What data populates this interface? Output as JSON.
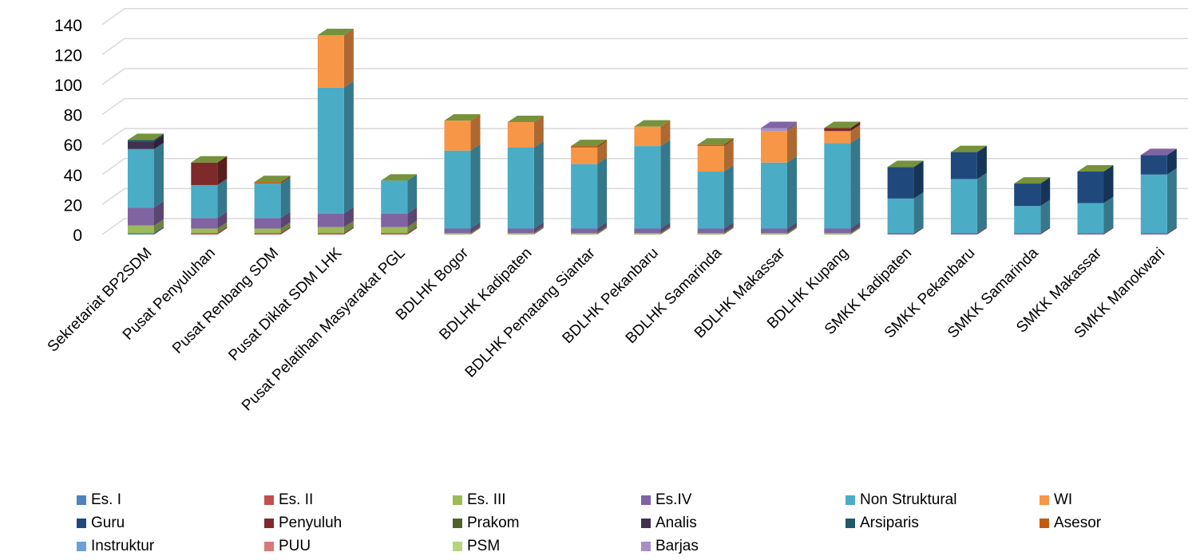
{
  "chart_data": {
    "type": "bar",
    "stacked": true,
    "three_d": true,
    "title": "",
    "xlabel": "",
    "ylabel": "",
    "ylim": [
      0,
      140
    ],
    "yticks": [
      0,
      20,
      40,
      60,
      80,
      100,
      120,
      140
    ],
    "grid": true,
    "legend_position": "bottom",
    "categories": [
      "Sekretariat BP2SDM",
      "Pusat Penyuluhan",
      "Pusat Renbang SDM",
      "Pusat Diklat SDM LHK",
      "Pusat Pelatihan Masyarakat PGL",
      "BDLHK Bogor",
      "BDLHK Kadipaten",
      "BDLHK Pematang Siantar",
      "BDLHK Pekanbaru",
      "BDLHK Samarinda",
      "BDLHK Makassar",
      "BDLHK Kupang",
      "SMKK Kadipaten",
      "SMKK Pekanbaru",
      "SMKK Samarinda",
      "SMKK Makassar",
      "SMKK Manokwari"
    ],
    "series": [
      {
        "name": "Es. I",
        "color": "#4f81bd",
        "values": [
          1,
          0,
          0,
          0,
          0,
          0,
          0,
          0,
          0,
          0,
          0,
          0,
          0,
          0,
          0,
          0,
          0
        ]
      },
      {
        "name": "Es. II",
        "color": "#c0504d",
        "values": [
          0,
          1,
          1,
          1,
          1,
          0,
          0,
          0,
          0,
          0,
          0,
          0,
          0,
          0,
          0,
          0,
          0
        ]
      },
      {
        "name": "Es. III",
        "color": "#9bbb59",
        "values": [
          5,
          3,
          3,
          4,
          4,
          1,
          1,
          1,
          1,
          1,
          1,
          1,
          0,
          0,
          0,
          0,
          0
        ]
      },
      {
        "name": "Es.IV",
        "color": "#8064a2",
        "values": [
          12,
          7,
          7,
          9,
          9,
          3,
          3,
          3,
          3,
          3,
          3,
          3,
          1,
          1,
          1,
          1,
          1
        ]
      },
      {
        "name": "Non Struktural",
        "color": "#4bacc6",
        "values": [
          39,
          22,
          23,
          84,
          22,
          52,
          54,
          43,
          55,
          38,
          44,
          57,
          23,
          36,
          18,
          20,
          39
        ]
      },
      {
        "name": "WI",
        "color": "#f79646",
        "values": [
          0,
          0,
          0,
          35,
          0,
          20,
          17,
          11,
          13,
          17,
          21,
          8,
          0,
          0,
          0,
          0,
          0
        ]
      },
      {
        "name": "Guru",
        "color": "#1f497d",
        "values": [
          0,
          0,
          0,
          0,
          0,
          0,
          0,
          0,
          0,
          0,
          0,
          0,
          21,
          18,
          15,
          21,
          13
        ]
      },
      {
        "name": "Penyuluh",
        "color": "#7f2a2a",
        "values": [
          0,
          15,
          0,
          0,
          0,
          0,
          0,
          0,
          0,
          0,
          0,
          2,
          0,
          0,
          0,
          0,
          0
        ]
      },
      {
        "name": "Prakom",
        "color": "#4f6228",
        "values": [
          0,
          0,
          0,
          0,
          0,
          0,
          0,
          0,
          0,
          0,
          0,
          0,
          0,
          0,
          0,
          0,
          0
        ]
      },
      {
        "name": "Analis",
        "color": "#403152",
        "values": [
          5,
          0,
          0,
          0,
          0,
          0,
          0,
          0,
          0,
          0,
          0,
          0,
          0,
          0,
          0,
          0,
          0
        ]
      },
      {
        "name": "Arsiparis",
        "color": "#215968",
        "values": [
          1,
          0,
          0,
          0,
          0,
          0,
          0,
          0,
          0,
          0,
          0,
          0,
          0,
          0,
          0,
          0,
          0
        ]
      },
      {
        "name": "Asesor",
        "color": "#c55a11",
        "values": [
          0,
          0,
          1,
          0,
          0,
          0,
          0,
          1,
          0,
          1,
          0,
          0,
          0,
          0,
          0,
          0,
          0
        ]
      },
      {
        "name": "Instruktur",
        "color": "#6f9fd8",
        "values": [
          0,
          0,
          0,
          0,
          0,
          0,
          0,
          0,
          0,
          0,
          0,
          0,
          0,
          0,
          0,
          0,
          0
        ]
      },
      {
        "name": "PUU",
        "color": "#d77a78",
        "values": [
          0,
          0,
          0,
          0,
          0,
          0,
          0,
          0,
          0,
          0,
          0,
          0,
          0,
          0,
          0,
          0,
          0
        ]
      },
      {
        "name": "PSM",
        "color": "#b5d67d",
        "values": [
          0,
          0,
          0,
          0,
          0,
          0,
          0,
          0,
          0,
          0,
          0,
          0,
          0,
          0,
          0,
          0,
          0
        ]
      },
      {
        "name": "Barjas",
        "color": "#a58fc7",
        "values": [
          0,
          0,
          0,
          0,
          0,
          0,
          0,
          0,
          0,
          0,
          2,
          0,
          0,
          0,
          0,
          0,
          0
        ]
      }
    ]
  }
}
